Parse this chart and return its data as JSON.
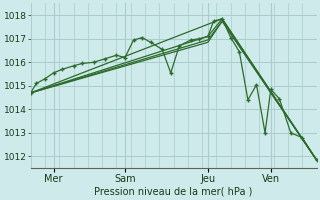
{
  "bg_color": "#ceeaea",
  "grid_color": "#aacccc",
  "line_color": "#2d6b2d",
  "xlabel_text": "Pression niveau de la mer( hPa )",
  "ylim": [
    1011.5,
    1018.5
  ],
  "yticks": [
    1012,
    1013,
    1014,
    1015,
    1016,
    1017,
    1018
  ],
  "xlim": [
    0,
    100
  ],
  "day_ticks": [
    8,
    33,
    62,
    84
  ],
  "day_labels": [
    "Mer",
    "Sam",
    "Jeu",
    "Ven"
  ],
  "series": [
    {
      "x": [
        0,
        2,
        5,
        8,
        11,
        15,
        18,
        22,
        26,
        30,
        33,
        36,
        39,
        42,
        46,
        49,
        52,
        56,
        59,
        62,
        64,
        67,
        70,
        73,
        76,
        79,
        82,
        84,
        87,
        91,
        95,
        100
      ],
      "y": [
        1014.7,
        1015.1,
        1015.3,
        1015.55,
        1015.7,
        1015.85,
        1015.95,
        1016.0,
        1016.15,
        1016.3,
        1016.2,
        1016.95,
        1017.05,
        1016.85,
        1016.55,
        1015.55,
        1016.7,
        1016.95,
        1017.0,
        1017.1,
        1017.75,
        1017.85,
        1017.05,
        1016.45,
        1014.4,
        1015.05,
        1013.0,
        1014.85,
        1014.45,
        1013.0,
        1012.8,
        1011.85
      ],
      "markers": true
    },
    {
      "x": [
        0,
        62,
        67,
        100
      ],
      "y": [
        1014.7,
        1017.1,
        1017.85,
        1011.85
      ],
      "markers": false
    },
    {
      "x": [
        0,
        62,
        67,
        100
      ],
      "y": [
        1014.7,
        1016.95,
        1017.75,
        1011.85
      ],
      "markers": false
    },
    {
      "x": [
        0,
        62,
        67,
        100
      ],
      "y": [
        1014.7,
        1016.85,
        1017.75,
        1011.85
      ],
      "markers": false
    },
    {
      "x": [
        0,
        67,
        100
      ],
      "y": [
        1014.7,
        1017.85,
        1011.85
      ],
      "markers": false
    }
  ],
  "figsize": [
    3.2,
    2.0
  ],
  "dpi": 100
}
